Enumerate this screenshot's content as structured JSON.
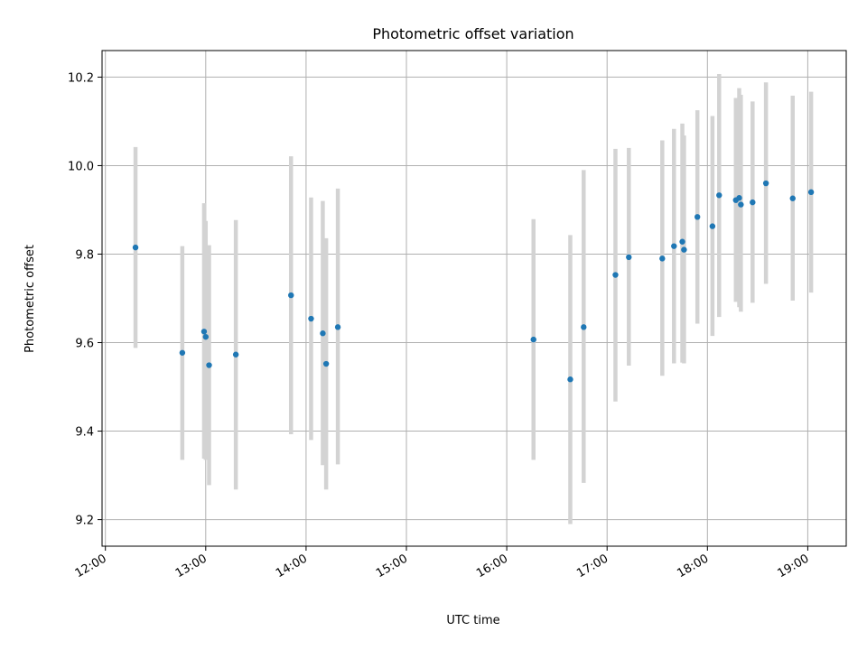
{
  "chart_data": {
    "type": "scatter",
    "title": "Photometric offset variation",
    "xlabel": "UTC time",
    "ylabel": "Photometric offset",
    "x_ticks": [
      "12:00",
      "13:00",
      "14:00",
      "15:00",
      "16:00",
      "17:00",
      "18:00",
      "19:00"
    ],
    "y_ticks": [
      "9.2",
      "9.4",
      "9.6",
      "9.8",
      "10.0",
      "10.2"
    ],
    "xlim": [
      "11:58",
      "19:23"
    ],
    "ylim": [
      9.14,
      10.26
    ],
    "grid": true,
    "colors": {
      "points": "#1f77b4",
      "errorbars": "#d3d3d3",
      "grid": "#b0b0b0"
    },
    "points": [
      {
        "x": "12:18",
        "y": 9.815,
        "ylow": 9.588,
        "yhigh": 10.042
      },
      {
        "x": "12:46",
        "y": 9.577,
        "ylow": 9.335,
        "yhigh": 9.818
      },
      {
        "x": "12:59",
        "y": 9.625,
        "ylow": 9.338,
        "yhigh": 9.915
      },
      {
        "x": "13:00",
        "y": 9.613,
        "ylow": 9.335,
        "yhigh": 9.875
      },
      {
        "x": "13:02",
        "y": 9.549,
        "ylow": 9.278,
        "yhigh": 9.82
      },
      {
        "x": "13:18",
        "y": 9.573,
        "ylow": 9.268,
        "yhigh": 9.877
      },
      {
        "x": "13:51",
        "y": 9.707,
        "ylow": 9.393,
        "yhigh": 10.021
      },
      {
        "x": "14:03",
        "y": 9.654,
        "ylow": 9.38,
        "yhigh": 9.928
      },
      {
        "x": "14:10",
        "y": 9.621,
        "ylow": 9.323,
        "yhigh": 9.92
      },
      {
        "x": "14:12",
        "y": 9.552,
        "ylow": 9.268,
        "yhigh": 9.836
      },
      {
        "x": "14:19",
        "y": 9.635,
        "ylow": 9.325,
        "yhigh": 9.948
      },
      {
        "x": "16:16",
        "y": 9.607,
        "ylow": 9.335,
        "yhigh": 9.879
      },
      {
        "x": "16:38",
        "y": 9.517,
        "ylow": 9.19,
        "yhigh": 9.843
      },
      {
        "x": "16:46",
        "y": 9.635,
        "ylow": 9.283,
        "yhigh": 9.99
      },
      {
        "x": "17:05",
        "y": 9.753,
        "ylow": 9.467,
        "yhigh": 10.038
      },
      {
        "x": "17:13",
        "y": 9.793,
        "ylow": 9.548,
        "yhigh": 10.04
      },
      {
        "x": "17:33",
        "y": 9.79,
        "ylow": 9.525,
        "yhigh": 10.057
      },
      {
        "x": "17:40",
        "y": 9.818,
        "ylow": 9.553,
        "yhigh": 10.083
      },
      {
        "x": "17:45",
        "y": 9.828,
        "ylow": 9.555,
        "yhigh": 10.095
      },
      {
        "x": "17:46",
        "y": 9.81,
        "ylow": 9.553,
        "yhigh": 10.068
      },
      {
        "x": "17:54",
        "y": 9.884,
        "ylow": 9.643,
        "yhigh": 10.125
      },
      {
        "x": "18:03",
        "y": 9.863,
        "ylow": 9.615,
        "yhigh": 10.112
      },
      {
        "x": "18:07",
        "y": 9.933,
        "ylow": 9.658,
        "yhigh": 10.207
      },
      {
        "x": "18:17",
        "y": 9.922,
        "ylow": 9.692,
        "yhigh": 10.153
      },
      {
        "x": "18:19",
        "y": 9.927,
        "ylow": 9.68,
        "yhigh": 10.175
      },
      {
        "x": "18:20",
        "y": 9.912,
        "ylow": 9.67,
        "yhigh": 10.16
      },
      {
        "x": "18:27",
        "y": 9.917,
        "ylow": 9.69,
        "yhigh": 10.145
      },
      {
        "x": "18:35",
        "y": 9.96,
        "ylow": 9.733,
        "yhigh": 10.188
      },
      {
        "x": "18:51",
        "y": 9.926,
        "ylow": 9.695,
        "yhigh": 10.158
      },
      {
        "x": "19:02",
        "y": 9.94,
        "ylow": 9.713,
        "yhigh": 10.167
      }
    ]
  }
}
